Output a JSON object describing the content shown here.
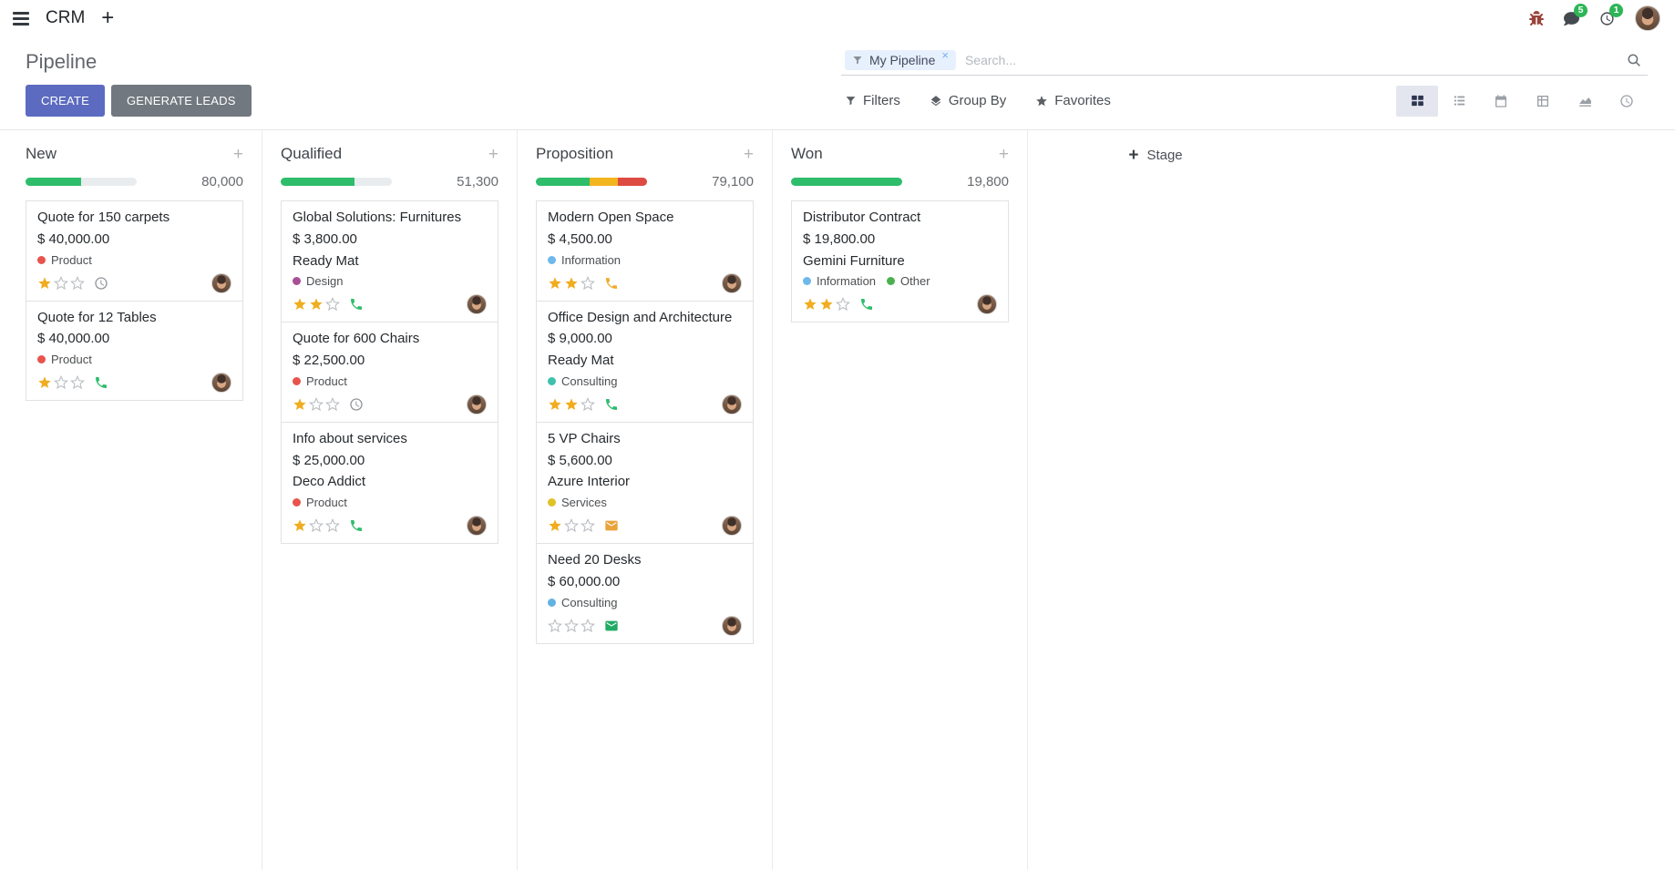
{
  "colors": {
    "primary": "#5c6bc0",
    "secondary": "#71787f",
    "star_filled": "#f0ad1f",
    "star_empty": "#b9bdc2",
    "badge": "#2cb656",
    "progress_bg": "#e9ecef"
  },
  "topbar": {
    "app_name": "CRM",
    "messages_badge": "5",
    "activities_badge": "1"
  },
  "control_panel": {
    "title": "Pipeline",
    "create_label": "CREATE",
    "generate_leads_label": "GENERATE LEADS",
    "filters_label": "Filters",
    "group_by_label": "Group By",
    "favorites_label": "Favorites",
    "search_facet": "My Pipeline",
    "search_placeholder": "Search..."
  },
  "board": {
    "add_stage_label": "Stage",
    "columns": [
      {
        "name": "New",
        "total": "80,000",
        "progress": [
          {
            "color": "#2ebd6b",
            "pct": 50
          }
        ],
        "cards": [
          {
            "title": "Quote for 150 carpets",
            "amount": "$ 40,000.00",
            "partner": "",
            "tags": [
              {
                "label": "Product",
                "color": "#e8544c"
              }
            ],
            "stars": 1,
            "activity": {
              "type": "clock",
              "color": "#8f9499"
            }
          },
          {
            "title": "Quote for 12 Tables",
            "amount": "$ 40,000.00",
            "partner": "",
            "tags": [
              {
                "label": "Product",
                "color": "#e8544c"
              }
            ],
            "stars": 1,
            "activity": {
              "type": "phone",
              "color": "#2ebd6b"
            }
          }
        ]
      },
      {
        "name": "Qualified",
        "total": "51,300",
        "progress": [
          {
            "color": "#2ebd6b",
            "pct": 66
          }
        ],
        "cards": [
          {
            "title": "Global Solutions: Furnitures",
            "amount": "$ 3,800.00",
            "partner": "Ready Mat",
            "tags": [
              {
                "label": "Design",
                "color": "#a94f96"
              }
            ],
            "stars": 2,
            "activity": {
              "type": "phone",
              "color": "#2ebd6b"
            }
          },
          {
            "title": "Quote for 600 Chairs",
            "amount": "$ 22,500.00",
            "partner": "",
            "tags": [
              {
                "label": "Product",
                "color": "#e8544c"
              }
            ],
            "stars": 1,
            "activity": {
              "type": "clock",
              "color": "#8f9499"
            }
          },
          {
            "title": "Info about services",
            "amount": "$ 25,000.00",
            "partner": "Deco Addict",
            "tags": [
              {
                "label": "Product",
                "color": "#e8544c"
              }
            ],
            "stars": 1,
            "activity": {
              "type": "phone",
              "color": "#2ebd6b"
            }
          }
        ]
      },
      {
        "name": "Proposition",
        "total": "79,100",
        "progress": [
          {
            "color": "#2ebd6b",
            "pct": 48
          },
          {
            "color": "#f2b51d",
            "pct": 26
          },
          {
            "color": "#dd4a41",
            "pct": 26
          }
        ],
        "cards": [
          {
            "title": "Modern Open Space",
            "amount": "$ 4,500.00",
            "partner": "",
            "tags": [
              {
                "label": "Information",
                "color": "#6fb8ea"
              }
            ],
            "stars": 2,
            "activity": {
              "type": "phone",
              "color": "#f0ad2d"
            }
          },
          {
            "title": "Office Design and Architecture",
            "amount": "$ 9,000.00",
            "partner": "Ready Mat",
            "tags": [
              {
                "label": "Consulting",
                "color": "#3ec1ad"
              }
            ],
            "stars": 2,
            "activity": {
              "type": "phone",
              "color": "#2ebd6b"
            }
          },
          {
            "title": "5 VP Chairs",
            "amount": "$ 5,600.00",
            "partner": "Azure Interior",
            "tags": [
              {
                "label": "Services",
                "color": "#dfc228"
              }
            ],
            "stars": 1,
            "activity": {
              "type": "envelope",
              "color": "#e8a33b"
            }
          },
          {
            "title": "Need 20 Desks",
            "amount": "$ 60,000.00",
            "partner": "",
            "tags": [
              {
                "label": "Consulting",
                "color": "#62b2e3"
              }
            ],
            "stars": 0,
            "activity": {
              "type": "envelope",
              "color": "#21ab66"
            }
          }
        ]
      },
      {
        "name": "Won",
        "total": "19,800",
        "progress": [
          {
            "color": "#2ebd6b",
            "pct": 100
          }
        ],
        "cards": [
          {
            "title": "Distributor Contract",
            "amount": "$ 19,800.00",
            "partner": "Gemini Furniture",
            "tags": [
              {
                "label": "Information",
                "color": "#6fb8ea"
              },
              {
                "label": "Other",
                "color": "#4caf50"
              }
            ],
            "stars": 2,
            "activity": {
              "type": "phone",
              "color": "#2ebd6b"
            }
          }
        ]
      }
    ]
  }
}
